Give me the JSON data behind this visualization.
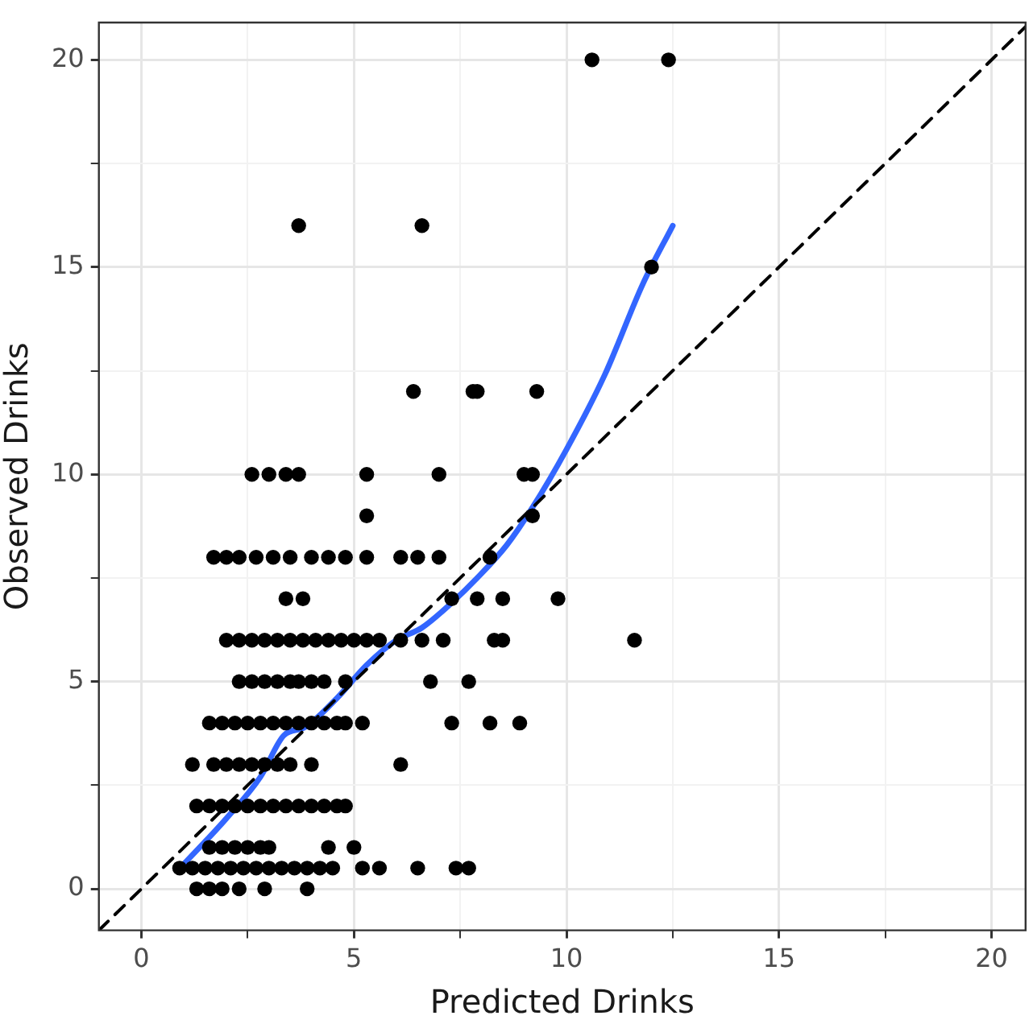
{
  "chart_data": {
    "type": "scatter",
    "xlabel": "Predicted Drinks",
    "ylabel": "Observed Drinks",
    "xlim": [
      -1,
      20.8
    ],
    "ylim": [
      -1,
      20.9
    ],
    "xticks": [
      0,
      {
        "value": 2.5,
        "label": null
      },
      5,
      {
        "value": 7.5,
        "label": null
      },
      10,
      {
        "value": 12.5,
        "label": null
      },
      15,
      {
        "value": 17.5,
        "label": null
      },
      20
    ],
    "yticks": [
      0,
      {
        "value": 2.5,
        "label": null
      },
      5,
      {
        "value": 7.5,
        "label": null
      },
      10,
      {
        "value": 12.5,
        "label": null
      },
      15,
      {
        "value": 17.5,
        "label": null
      },
      20
    ],
    "grid": true,
    "legend": false,
    "marker": "circle",
    "series": [
      {
        "color": "#000000",
        "x": [
          10.6,
          12.4,
          3.7,
          6.6,
          12.0,
          6.4,
          7.8,
          7.9,
          9.3,
          2.6,
          3.0,
          3.4,
          3.7,
          5.3,
          7.0,
          9.0,
          9.2,
          5.3,
          9.2,
          1.7,
          2.0,
          2.3,
          2.7,
          3.1,
          3.5,
          4.0,
          4.4,
          4.8,
          5.3,
          6.1,
          6.5,
          7.0,
          8.2,
          3.4,
          3.8,
          7.3,
          7.9,
          8.5,
          9.8,
          2.0,
          2.3,
          2.6,
          2.9,
          3.2,
          3.5,
          3.8,
          4.1,
          4.4,
          4.7,
          5.0,
          5.3,
          5.6,
          6.1,
          6.6,
          7.1,
          8.3,
          8.5,
          11.6,
          2.3,
          2.6,
          2.9,
          3.2,
          3.5,
          3.7,
          4.0,
          4.3,
          4.8,
          6.8,
          7.7,
          1.6,
          1.9,
          2.2,
          2.5,
          2.8,
          3.1,
          3.4,
          3.7,
          4.0,
          4.3,
          4.6,
          4.8,
          5.2,
          7.3,
          8.2,
          8.9,
          1.2,
          1.7,
          2.0,
          2.3,
          2.6,
          2.9,
          3.2,
          3.5,
          4.0,
          6.1,
          1.3,
          1.6,
          1.9,
          2.2,
          2.5,
          2.8,
          3.1,
          3.4,
          3.7,
          4.0,
          4.3,
          4.6,
          4.8,
          1.6,
          1.9,
          2.2,
          2.5,
          2.8,
          3.0,
          4.4,
          5.0,
          0.9,
          1.2,
          1.5,
          1.8,
          2.1,
          2.4,
          2.7,
          3.0,
          3.3,
          3.6,
          3.9,
          4.2,
          4.5,
          5.2,
          5.6,
          6.5,
          7.4,
          7.7,
          1.3,
          1.6,
          1.9,
          2.3,
          2.9,
          3.9
        ],
        "values": [
          20,
          20,
          16,
          16,
          15,
          12,
          12,
          12,
          12,
          10,
          10,
          10,
          10,
          10,
          10,
          10,
          10,
          9,
          9,
          8,
          8,
          8,
          8,
          8,
          8,
          8,
          8,
          8,
          8,
          8,
          8,
          8,
          8,
          7,
          7,
          7,
          7,
          7,
          7,
          6,
          6,
          6,
          6,
          6,
          6,
          6,
          6,
          6,
          6,
          6,
          6,
          6,
          6,
          6,
          6,
          6,
          6,
          6,
          5,
          5,
          5,
          5,
          5,
          5,
          5,
          5,
          5,
          5,
          5,
          4,
          4,
          4,
          4,
          4,
          4,
          4,
          4,
          4,
          4,
          4,
          4,
          4,
          4,
          4,
          4,
          3,
          3,
          3,
          3,
          3,
          3,
          3,
          3,
          3,
          3,
          2,
          2,
          2,
          2,
          2,
          2,
          2,
          2,
          2,
          2,
          2,
          2,
          2,
          1,
          1,
          1,
          1,
          1,
          1,
          1,
          1,
          0.5,
          0.5,
          0.5,
          0.5,
          0.5,
          0.5,
          0.5,
          0.5,
          0.5,
          0.5,
          0.5,
          0.5,
          0.5,
          0.5,
          0.5,
          0.5,
          0.5,
          0.5,
          0,
          0,
          0,
          0,
          0,
          0
        ]
      },
      {
        "type": "line",
        "color": "#000000",
        "line_style": "dashed",
        "marker": "none",
        "x": [
          -1,
          20.8
        ],
        "values": [
          -1,
          20.8
        ]
      },
      {
        "type": "line",
        "color": "#3366ff",
        "line_style": "solid",
        "marker": "none",
        "x": [
          1.0,
          2.0,
          2.8,
          3.35,
          3.85,
          4.6,
          5.3,
          6.0,
          6.6,
          7.3,
          7.9,
          8.6,
          9.2,
          10.0,
          10.9,
          11.8,
          12.5
        ],
        "values": [
          0.6,
          1.7,
          2.7,
          3.7,
          3.9,
          4.6,
          5.4,
          6.0,
          6.3,
          6.9,
          7.5,
          8.3,
          9.2,
          10.6,
          12.4,
          14.6,
          16.0
        ]
      }
    ]
  }
}
